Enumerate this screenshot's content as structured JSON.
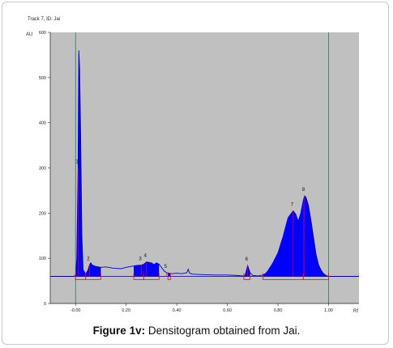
{
  "figure": {
    "caption_label": "Figure 1v:",
    "caption_text": " Densitogram obtained from Jai."
  },
  "chart_data": {
    "type": "line",
    "title": "Track 7, ID: Jai",
    "xlabel": "Rf",
    "ylabel": "AU",
    "xlim": [
      -0.1,
      1.12
    ],
    "ylim": [
      0,
      600
    ],
    "x_ticks": [
      -0.0,
      0.2,
      0.4,
      0.6,
      0.8,
      1.0
    ],
    "x_tick_labels": [
      "-0.00",
      "0.20",
      "0.40",
      "0.60",
      "0.80",
      "1.00"
    ],
    "y_ticks": [
      0,
      100,
      200,
      300,
      400,
      500,
      600
    ],
    "y_tick_labels": [
      "0",
      "100",
      "200",
      "300",
      "400",
      "500",
      "600"
    ],
    "front_lines_rf": [
      0.0,
      1.0
    ],
    "baseline_au": 60,
    "colors": {
      "plot_bg": "#c0c0c0",
      "fill": "#0000ff",
      "line": "#0000cc",
      "markers": "#ff0000",
      "front_lines": "#2e7a55",
      "baseline": "#000080"
    },
    "series": [
      {
        "x": [
          -0.1,
          -0.01,
          0.0,
          0.005,
          0.01,
          0.013,
          0.016,
          0.02,
          0.025,
          0.03,
          0.04,
          0.05,
          0.055,
          0.06,
          0.065,
          0.07,
          0.08,
          0.1,
          0.12,
          0.15,
          0.18,
          0.2,
          0.22,
          0.24,
          0.26,
          0.27,
          0.28,
          0.3,
          0.31,
          0.32,
          0.33,
          0.35,
          0.36,
          0.38,
          0.4,
          0.42,
          0.43,
          0.44,
          0.445,
          0.45,
          0.46,
          0.5,
          0.55,
          0.6,
          0.64,
          0.66,
          0.67,
          0.68,
          0.69,
          0.7,
          0.72,
          0.73,
          0.74,
          0.75,
          0.76,
          0.78,
          0.8,
          0.82,
          0.84,
          0.86,
          0.87,
          0.88,
          0.89,
          0.9,
          0.905,
          0.91,
          0.92,
          0.93,
          0.94,
          0.95,
          0.96,
          0.97,
          0.98,
          0.99,
          1.0,
          1.12
        ],
        "y": [
          60,
          60,
          62,
          100,
          300,
          560,
          520,
          380,
          150,
          75,
          65,
          75,
          85,
          90,
          86,
          84,
          82,
          80,
          81,
          78,
          77,
          80,
          82,
          84,
          85,
          87,
          92,
          90,
          86,
          90,
          87,
          72,
          68,
          66,
          67,
          66,
          67,
          68,
          76,
          68,
          65,
          64,
          63,
          63,
          62,
          61,
          62,
          84,
          68,
          62,
          61,
          62,
          63,
          66,
          72,
          90,
          112,
          148,
          190,
          205,
          198,
          182,
          200,
          228,
          238,
          236,
          218,
          185,
          148,
          110,
          86,
          74,
          66,
          62,
          60,
          60
        ]
      }
    ],
    "peaks": [
      {
        "label": "1",
        "rf": 0.01
      },
      {
        "label": "2",
        "rf": 0.055
      },
      {
        "label": "3",
        "rf": 0.26
      },
      {
        "label": "4",
        "rf": 0.28
      },
      {
        "label": "5",
        "rf": 0.36
      },
      {
        "label": "6",
        "rf": 0.68
      },
      {
        "label": "7",
        "rf": 0.86
      },
      {
        "label": "8",
        "rf": 0.905
      }
    ],
    "integration_regions": [
      [
        0.0,
        0.04
      ],
      [
        0.04,
        0.1
      ],
      [
        0.23,
        0.27
      ],
      [
        0.27,
        0.33
      ],
      [
        0.365,
        0.375
      ],
      [
        0.665,
        0.69
      ],
      [
        0.74,
        0.9
      ],
      [
        0.9,
        1.0
      ]
    ]
  }
}
